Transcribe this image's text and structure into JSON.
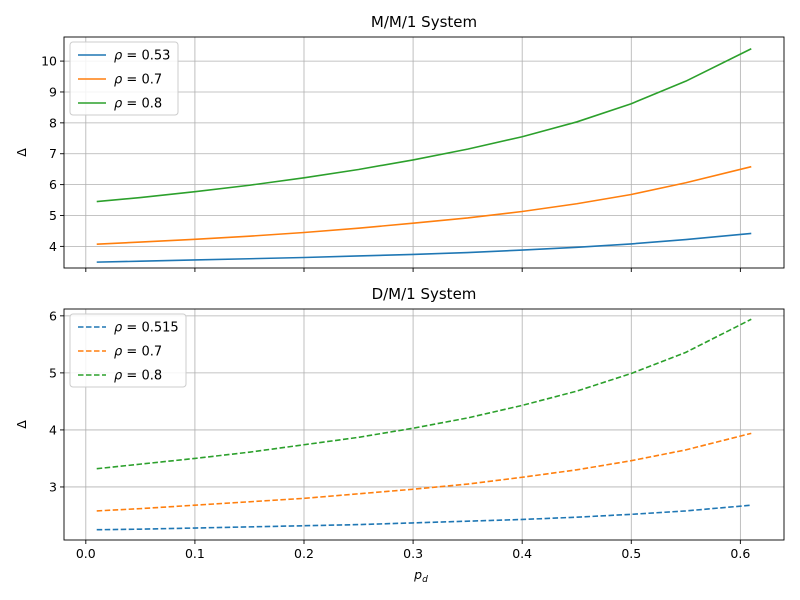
{
  "chart_data": [
    {
      "type": "line",
      "title": "M/M/1 System",
      "xlabel": "",
      "ylabel": "Δ",
      "xlim": [
        -0.02,
        0.64
      ],
      "ylim": [
        3.3,
        10.78
      ],
      "xticks": [
        0.0,
        0.1,
        0.2,
        0.3,
        0.4,
        0.5,
        0.6
      ],
      "xtick_labels_visible": false,
      "yticks": [
        4,
        5,
        6,
        7,
        8,
        9,
        10
      ],
      "ytick_labels": [
        "4",
        "5",
        "6",
        "7",
        "8",
        "9",
        "10"
      ],
      "grid": true,
      "legend": "top-left",
      "x": [
        0.01,
        0.05,
        0.1,
        0.15,
        0.2,
        0.25,
        0.3,
        0.35,
        0.4,
        0.45,
        0.5,
        0.55,
        0.61
      ],
      "series": [
        {
          "name_prefix": "ρ",
          "name_value": "0.53",
          "color": "#1f77b4",
          "style": "solid",
          "values": [
            3.49,
            3.52,
            3.56,
            3.6,
            3.64,
            3.69,
            3.74,
            3.8,
            3.88,
            3.97,
            4.08,
            4.22,
            4.42
          ]
        },
        {
          "name_prefix": "ρ",
          "name_value": "0.7",
          "color": "#ff7f0e",
          "style": "solid",
          "values": [
            4.07,
            4.14,
            4.23,
            4.33,
            4.45,
            4.59,
            4.75,
            4.92,
            5.13,
            5.38,
            5.68,
            6.06,
            6.58
          ]
        },
        {
          "name_prefix": "ρ",
          "name_value": "0.8",
          "color": "#2ca02c",
          "style": "solid",
          "values": [
            5.45,
            5.58,
            5.77,
            5.98,
            6.22,
            6.49,
            6.8,
            7.15,
            7.55,
            8.03,
            8.62,
            9.35,
            10.4
          ]
        }
      ]
    },
    {
      "type": "line",
      "title": "D/M/1 System",
      "xlabel_base": "p",
      "xlabel_sub": "d",
      "ylabel": "Δ",
      "xlim": [
        -0.02,
        0.64
      ],
      "ylim": [
        2.07,
        6.12
      ],
      "xticks": [
        0.0,
        0.1,
        0.2,
        0.3,
        0.4,
        0.5,
        0.6
      ],
      "xtick_labels": [
        "0.0",
        "0.1",
        "0.2",
        "0.3",
        "0.4",
        "0.5",
        "0.6"
      ],
      "yticks": [
        3,
        4,
        5,
        6
      ],
      "ytick_labels": [
        "3",
        "4",
        "5",
        "6"
      ],
      "grid": true,
      "legend": "top-left",
      "x": [
        0.01,
        0.05,
        0.1,
        0.15,
        0.2,
        0.25,
        0.3,
        0.35,
        0.4,
        0.45,
        0.5,
        0.55,
        0.61
      ],
      "series": [
        {
          "name_prefix": "ρ",
          "name_value": "0.515",
          "color": "#1f77b4",
          "style": "dashed",
          "values": [
            2.25,
            2.26,
            2.28,
            2.3,
            2.32,
            2.34,
            2.37,
            2.4,
            2.43,
            2.47,
            2.52,
            2.58,
            2.68
          ]
        },
        {
          "name_prefix": "ρ",
          "name_value": "0.7",
          "color": "#ff7f0e",
          "style": "dashed",
          "values": [
            2.58,
            2.62,
            2.68,
            2.74,
            2.8,
            2.88,
            2.96,
            3.05,
            3.17,
            3.3,
            3.46,
            3.65,
            3.94
          ]
        },
        {
          "name_prefix": "ρ",
          "name_value": "0.8",
          "color": "#2ca02c",
          "style": "dashed",
          "values": [
            3.32,
            3.4,
            3.5,
            3.61,
            3.74,
            3.87,
            4.03,
            4.21,
            4.43,
            4.68,
            4.99,
            5.36,
            5.94
          ]
        }
      ]
    }
  ]
}
